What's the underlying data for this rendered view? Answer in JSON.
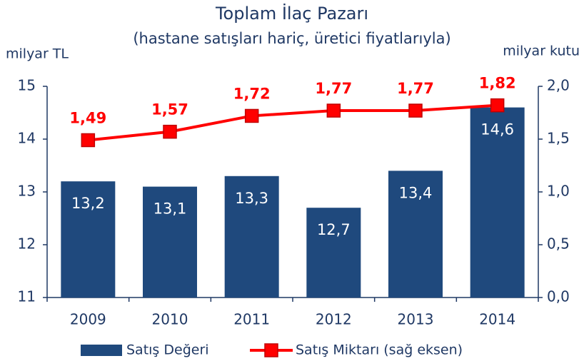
{
  "chart_data": {
    "type": "bar_line",
    "title": "Toplam İlaç Pazarı",
    "subtitle": "(hastane satışları hariç, üretici fiyatlarıyla)",
    "ylabel": "milyar TL",
    "y2label": "milyar kutu",
    "categories": [
      "2009",
      "2010",
      "2011",
      "2012",
      "2013",
      "2014"
    ],
    "series": [
      {
        "name": "Satış Değeri",
        "type": "bar",
        "color": "#1f497d",
        "axis": "y",
        "values": [
          13.2,
          13.1,
          13.3,
          12.7,
          13.4,
          14.6
        ],
        "value_labels": [
          "13,2",
          "13,1",
          "13,3",
          "12,7",
          "13,4",
          "14,6"
        ]
      },
      {
        "name": "Satış Miktarı (sağ eksen)",
        "type": "line",
        "color": "#ff0000",
        "axis": "y2",
        "values": [
          1.49,
          1.57,
          1.72,
          1.77,
          1.77,
          1.82
        ],
        "value_labels": [
          "1,49",
          "1,57",
          "1,72",
          "1,77",
          "1,77",
          "1,82"
        ]
      }
    ],
    "ylim": [
      11,
      15
    ],
    "yticks": [
      11,
      12,
      13,
      14,
      15
    ],
    "y2lim": [
      0,
      2
    ],
    "y2ticks": [
      {
        "value": 0,
        "label": "0,0"
      },
      {
        "value": 0.5,
        "label": "0,5"
      },
      {
        "value": 1,
        "label": "1,0"
      },
      {
        "value": 1.5,
        "label": "1,5"
      },
      {
        "value": 2,
        "label": "2,0"
      }
    ],
    "legend": "bottom",
    "grid": false
  }
}
